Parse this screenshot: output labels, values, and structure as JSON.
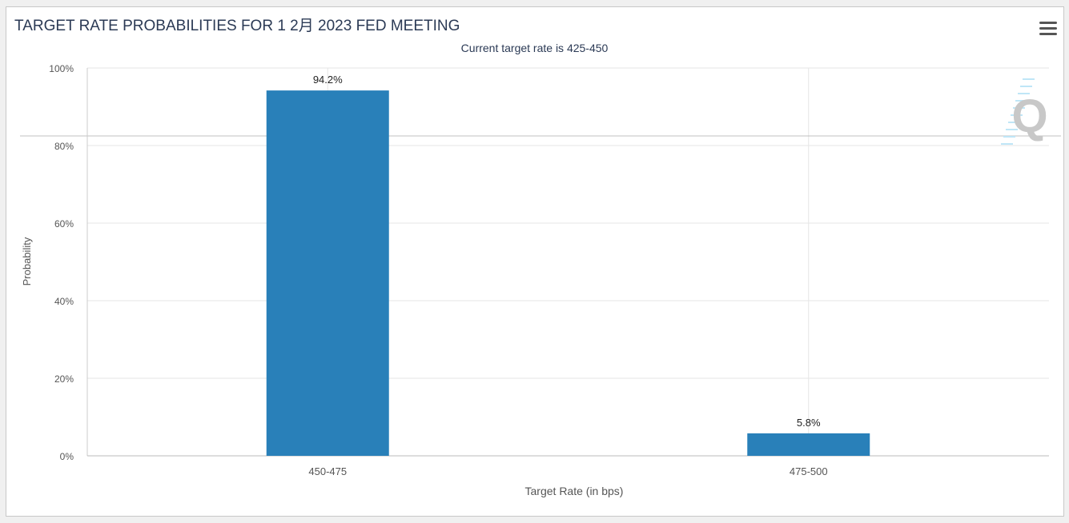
{
  "header": {
    "title": "TARGET RATE PROBABILITIES FOR 1 2月 2023 FED MEETING",
    "subtitle": "Current target rate is 425-450",
    "menu_icon": "hamburger-menu-icon"
  },
  "chart_data": {
    "type": "bar",
    "categories": [
      "450-475",
      "475-500"
    ],
    "values": [
      94.2,
      5.8
    ],
    "data_labels": [
      "94.2%",
      "5.8%"
    ],
    "xlabel": "Target Rate (in bps)",
    "ylabel": "Probability",
    "ylim": [
      0,
      100
    ],
    "yticks": [
      "0%",
      "20%",
      "40%",
      "60%",
      "80%",
      "100%"
    ],
    "grid": true,
    "bar_color": "#2980b9"
  },
  "watermark": "Q"
}
